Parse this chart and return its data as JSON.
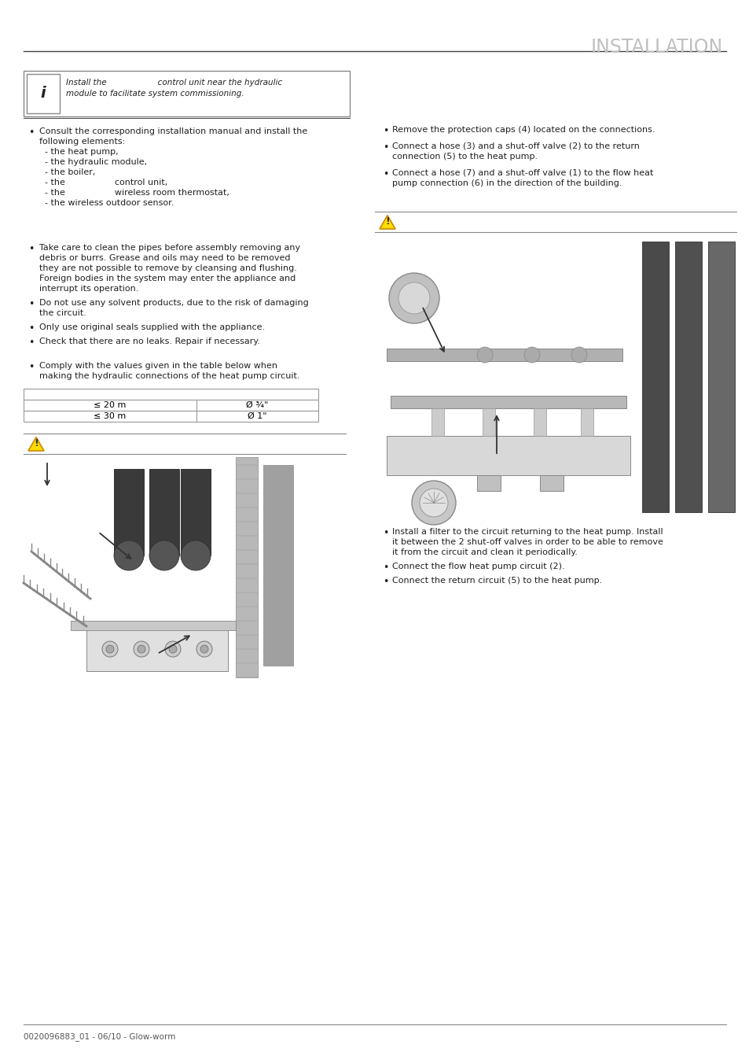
{
  "title": "INSTALLATION",
  "footer": "0020096883_01 - 06/10 - Glow-worm",
  "bg_color": "#ffffff",
  "title_color": "#c0c0c0",
  "text_color": "#231f20",
  "line_color": "#231f20",
  "info_box_text_line1": "Install the                    control unit near the hydraulic",
  "info_box_text_line2": "module to facilitate system commissioning.",
  "bullet1_lines": [
    "Consult the corresponding installation manual and install the",
    "following elements:",
    "  - the heat pump,",
    "  - the hydraulic module,",
    "  - the boiler,",
    "  - the                  control unit,",
    "  - the                  wireless room thermostat,",
    "  - the wireless outdoor sensor."
  ],
  "bullet2_lines": [
    "Take care to clean the pipes before assembly removing any",
    "debris or burrs. Grease and oils may need to be removed",
    "they are not possible to remove by cleansing and flushing.",
    "Foreign bodies in the system may enter the appliance and",
    "interrupt its operation."
  ],
  "bullet3_lines": [
    "Do not use any solvent products, due to the risk of damaging",
    "the circuit."
  ],
  "bullet4_lines": [
    "Only use original seals supplied with the appliance."
  ],
  "bullet5_lines": [
    "Check that there are no leaks. Repair if necessary."
  ],
  "bullet6_lines": [
    "Comply with the values given in the table below when",
    "making the hydraulic connections of the heat pump circuit."
  ],
  "table_row1_left": "≤ 20 m",
  "table_row1_right": "Ø ¾\"",
  "table_row2_left": "≤ 30 m",
  "table_row2_right": "Ø 1\"",
  "right_bullet1_lines": [
    "Remove the protection caps (4) located on the connections."
  ],
  "right_bullet2_lines": [
    "Connect a hose (3) and a shut-off valve (2) to the return",
    "connection (5) to the heat pump."
  ],
  "right_bullet3_lines": [
    "Connect a hose (7) and a shut-off valve (1) to the flow heat",
    "pump connection (6) in the direction of the building."
  ],
  "right_bullet4_lines": [
    "Install a filter to the circuit returning to the heat pump. Install",
    "it between the 2 shut-off valves in order to be able to remove",
    "it from the circuit and clean it periodically."
  ],
  "right_bullet5_lines": [
    "Connect the flow heat pump circuit (2)."
  ],
  "right_bullet6_lines": [
    "Connect the return circuit (5) to the heat pump."
  ]
}
